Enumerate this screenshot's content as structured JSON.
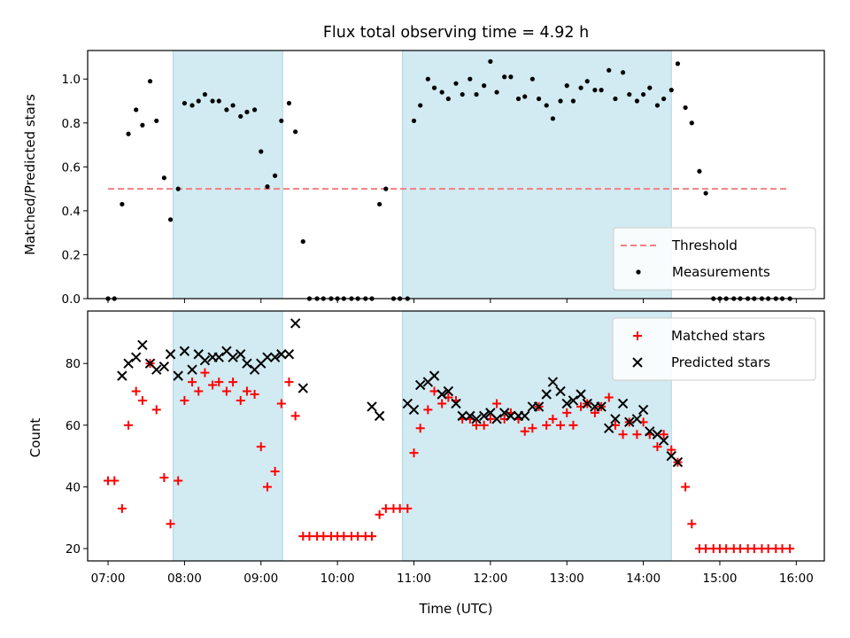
{
  "chart_data": [
    {
      "type": "scatter",
      "title": "Flux total observing time = 4.92 h",
      "ylabel": "Matched/Predicted stars",
      "xlabel": "",
      "xlim": [
        "06:44",
        "16:22"
      ],
      "ylim": [
        0,
        1.13
      ],
      "yticks": [
        0.0,
        0.2,
        0.4,
        0.6,
        0.8,
        1.0
      ],
      "ytick_labels": [
        "0.0",
        "0.2",
        "0.4",
        "0.6",
        "0.8",
        "1.0"
      ],
      "xticks": [
        "07:00",
        "08:00",
        "09:00",
        "10:00",
        "11:00",
        "12:00",
        "13:00",
        "14:00",
        "15:00",
        "16:00"
      ],
      "shaded_intervals": [
        [
          "07:51",
          "09:17"
        ],
        [
          "10:51",
          "14:22"
        ]
      ],
      "shade_color": "#add8e6",
      "legend_position": "lower-right",
      "threshold": {
        "name": "Threshold",
        "y": 0.5,
        "x_range": [
          "07:00",
          "15:55"
        ],
        "color": "#f08080"
      },
      "series": [
        {
          "name": "Measurements",
          "marker": "dot",
          "color": "#000000",
          "x": [
            "07:00",
            "07:05",
            "07:11",
            "07:16",
            "07:22",
            "07:27",
            "07:33",
            "07:38",
            "07:44",
            "07:49",
            "07:55",
            "08:00",
            "08:06",
            "08:11",
            "08:16",
            "08:22",
            "08:27",
            "08:33",
            "08:38",
            "08:44",
            "08:49",
            "08:55",
            "09:00",
            "09:05",
            "09:11",
            "09:16",
            "09:22",
            "09:27",
            "09:33",
            "09:38",
            "09:44",
            "09:49",
            "09:55",
            "10:00",
            "10:05",
            "10:11",
            "10:16",
            "10:22",
            "10:27",
            "10:33",
            "10:38",
            "10:44",
            "10:49",
            "10:55",
            "11:00",
            "11:05",
            "11:11",
            "11:16",
            "11:22",
            "11:27",
            "11:33",
            "11:38",
            "11:44",
            "11:49",
            "11:55",
            "12:00",
            "12:05",
            "12:11",
            "12:16",
            "12:22",
            "12:27",
            "12:33",
            "12:38",
            "12:44",
            "12:49",
            "12:55",
            "13:00",
            "13:05",
            "13:11",
            "13:16",
            "13:22",
            "13:27",
            "13:33",
            "13:38",
            "13:44",
            "13:49",
            "13:55",
            "14:00",
            "14:05",
            "14:11",
            "14:16",
            "14:22",
            "14:27",
            "14:33",
            "14:38",
            "14:44",
            "14:49",
            "14:55",
            "15:00",
            "15:05",
            "15:11",
            "15:16",
            "15:22",
            "15:27",
            "15:33",
            "15:38",
            "15:44",
            "15:49",
            "15:55"
          ],
          "y": [
            0.0,
            0.0,
            0.43,
            0.75,
            0.86,
            0.79,
            0.99,
            0.81,
            0.55,
            0.36,
            0.5,
            0.89,
            0.88,
            0.9,
            0.93,
            0.9,
            0.9,
            0.86,
            0.88,
            0.83,
            0.85,
            0.86,
            0.67,
            0.51,
            0.56,
            0.81,
            0.89,
            0.76,
            0.26,
            0.0,
            0.0,
            0.0,
            0.0,
            0.0,
            0.0,
            0.0,
            0.0,
            0.0,
            0.0,
            0.43,
            0.5,
            0.0,
            0.0,
            0.0,
            0.81,
            0.88,
            1.0,
            0.96,
            0.94,
            0.91,
            0.98,
            0.93,
            1.0,
            0.93,
            0.97,
            1.08,
            0.94,
            1.01,
            1.01,
            0.91,
            0.92,
            1.0,
            0.91,
            0.88,
            0.82,
            0.9,
            0.97,
            0.9,
            0.96,
            0.99,
            0.95,
            0.95,
            1.04,
            0.91,
            1.03,
            0.93,
            0.9,
            0.93,
            0.96,
            0.88,
            0.91,
            0.95,
            1.07,
            0.87,
            0.8,
            0.58,
            0.48,
            0.0,
            0.0,
            0.0,
            0.0,
            0.0,
            0.0,
            0.0,
            0.0,
            0.0,
            0.0,
            0.0,
            0.0
          ]
        }
      ]
    },
    {
      "type": "scatter",
      "title": "",
      "xlabel": "Time (UTC)",
      "ylabel": "Count",
      "xlim": [
        "06:44",
        "16:22"
      ],
      "ylim": [
        16,
        97
      ],
      "yticks": [
        20,
        40,
        60,
        80
      ],
      "ytick_labels": [
        "20",
        "40",
        "60",
        "80"
      ],
      "xticks": [
        "07:00",
        "08:00",
        "09:00",
        "10:00",
        "11:00",
        "12:00",
        "13:00",
        "14:00",
        "15:00",
        "16:00"
      ],
      "shaded_intervals": [
        [
          "07:51",
          "09:17"
        ],
        [
          "10:51",
          "14:22"
        ]
      ],
      "shade_color": "#add8e6",
      "legend_position": "upper-right",
      "series": [
        {
          "name": "Matched stars",
          "marker": "plus",
          "color": "#ff0000",
          "x": [
            "07:00",
            "07:05",
            "07:11",
            "07:16",
            "07:22",
            "07:27",
            "07:33",
            "07:38",
            "07:44",
            "07:49",
            "07:55",
            "08:00",
            "08:06",
            "08:11",
            "08:16",
            "08:22",
            "08:27",
            "08:33",
            "08:38",
            "08:44",
            "08:49",
            "08:55",
            "09:00",
            "09:05",
            "09:11",
            "09:16",
            "09:22",
            "09:27",
            "09:33",
            "09:38",
            "09:44",
            "09:49",
            "09:55",
            "10:00",
            "10:05",
            "10:11",
            "10:16",
            "10:22",
            "10:27",
            "10:33",
            "10:38",
            "10:44",
            "10:49",
            "10:55",
            "11:00",
            "11:05",
            "11:11",
            "11:16",
            "11:22",
            "11:27",
            "11:33",
            "11:38",
            "11:44",
            "11:49",
            "11:55",
            "12:00",
            "12:05",
            "12:11",
            "12:16",
            "12:22",
            "12:27",
            "12:33",
            "12:38",
            "12:44",
            "12:49",
            "12:55",
            "13:00",
            "13:05",
            "13:11",
            "13:16",
            "13:22",
            "13:27",
            "13:33",
            "13:38",
            "13:44",
            "13:49",
            "13:55",
            "14:00",
            "14:05",
            "14:11",
            "14:16",
            "14:22",
            "14:27",
            "14:33",
            "14:38",
            "14:44",
            "14:49",
            "14:55",
            "15:00",
            "15:05",
            "15:11",
            "15:16",
            "15:22",
            "15:27",
            "15:33",
            "15:38",
            "15:44",
            "15:49",
            "15:55"
          ],
          "y": [
            42,
            42,
            33,
            60,
            71,
            68,
            80,
            65,
            43,
            28,
            42,
            68,
            74,
            71,
            77,
            73,
            74,
            71,
            74,
            68,
            71,
            70,
            53,
            40,
            45,
            67,
            74,
            63,
            24,
            24,
            24,
            24,
            24,
            24,
            24,
            24,
            24,
            24,
            24,
            31,
            33,
            33,
            33,
            33,
            51,
            59,
            65,
            71,
            67,
            69,
            68,
            62,
            62,
            60,
            60,
            62,
            67,
            62,
            64,
            62,
            58,
            59,
            66,
            60,
            62,
            60,
            64,
            60,
            66,
            67,
            64,
            66,
            69,
            60,
            57,
            61,
            57,
            61,
            57,
            53,
            57,
            52,
            48,
            40,
            28,
            20,
            20,
            20,
            20,
            20,
            20,
            20,
            20,
            20,
            20,
            20,
            20,
            20,
            20
          ]
        },
        {
          "name": "Predicted stars",
          "marker": "x",
          "color": "#000000",
          "x": [
            "07:11",
            "07:16",
            "07:22",
            "07:27",
            "07:33",
            "07:38",
            "07:44",
            "07:49",
            "07:55",
            "08:00",
            "08:06",
            "08:11",
            "08:16",
            "08:22",
            "08:27",
            "08:33",
            "08:38",
            "08:44",
            "08:49",
            "08:55",
            "09:00",
            "09:05",
            "09:11",
            "09:16",
            "09:22",
            "09:27",
            "09:33",
            "10:27",
            "10:33",
            "10:55",
            "11:00",
            "11:05",
            "11:11",
            "11:16",
            "11:22",
            "11:27",
            "11:33",
            "11:38",
            "11:44",
            "11:49",
            "11:55",
            "12:00",
            "12:05",
            "12:11",
            "12:16",
            "12:22",
            "12:27",
            "12:33",
            "12:38",
            "12:44",
            "12:49",
            "12:55",
            "13:00",
            "13:05",
            "13:11",
            "13:16",
            "13:22",
            "13:27",
            "13:33",
            "13:38",
            "13:44",
            "13:49",
            "13:55",
            "14:00",
            "14:05",
            "14:11",
            "14:16",
            "14:22",
            "14:27"
          ],
          "y": [
            76,
            80,
            82,
            86,
            80,
            78,
            79,
            83,
            76,
            84,
            78,
            83,
            81,
            82,
            82,
            84,
            82,
            83,
            80,
            78,
            80,
            82,
            82,
            83,
            83,
            93,
            72,
            66,
            63,
            67,
            65,
            73,
            74,
            76,
            70,
            71,
            67,
            63,
            63,
            62,
            63,
            64,
            62,
            64,
            63,
            63,
            63,
            66,
            66,
            70,
            74,
            71,
            67,
            68,
            70,
            67,
            66,
            66,
            59,
            62,
            67,
            61,
            62,
            65,
            58,
            57,
            55,
            50,
            48
          ]
        }
      ]
    }
  ]
}
